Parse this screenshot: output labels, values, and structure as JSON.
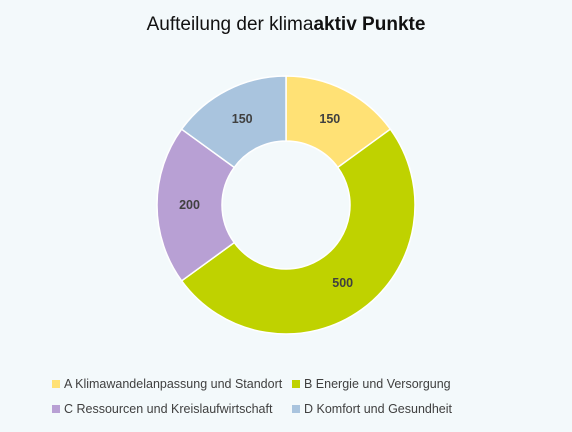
{
  "chart_data": {
    "type": "pie",
    "variant": "donut",
    "title_normal": "Aufteilung der klima",
    "title_bold": "aktiv Punkte",
    "categories": [
      "A Klimawandelanpassung und Standort",
      "B Energie und Versorgung",
      "C Ressourcen und Kreislaufwirtschaft",
      "D Komfort und Gesundheit"
    ],
    "values": [
      150,
      500,
      200,
      150
    ],
    "data_labels": [
      "150",
      "500",
      "200",
      "150"
    ],
    "colors": [
      "#ffe175",
      "#bfd200",
      "#b8a0d4",
      "#a9c4de"
    ],
    "legend_position": "bottom"
  }
}
